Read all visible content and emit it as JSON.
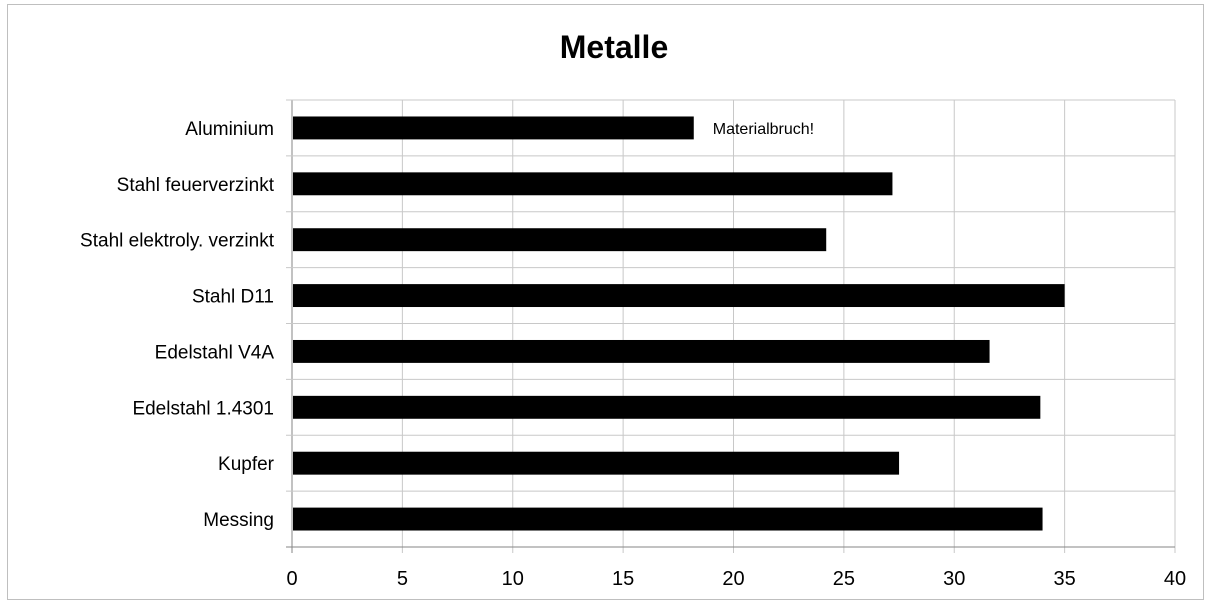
{
  "chart_data": {
    "type": "bar",
    "orientation": "horizontal",
    "title": "Metalle",
    "categories": [
      "Aluminium",
      "Stahl feuerverzinkt",
      "Stahl elektroly. verzinkt",
      "Stahl D11",
      "Edelstahl V4A",
      "Edelstahl 1.4301",
      "Kupfer",
      "Messing"
    ],
    "values": [
      18.2,
      27.2,
      24.2,
      35.0,
      31.6,
      33.9,
      27.5,
      34.0
    ],
    "xlim": [
      0,
      40
    ],
    "xticks": [
      "0",
      "5",
      "10",
      "15",
      "20",
      "25",
      "30",
      "35",
      "40"
    ],
    "grid": true,
    "legend": "none",
    "colors": {
      "bar": "#000000",
      "grid": "#c8c8c8",
      "axis": "#868686"
    },
    "annotations": [
      {
        "category": "Aluminium",
        "text": "Materialbruch!"
      }
    ]
  }
}
